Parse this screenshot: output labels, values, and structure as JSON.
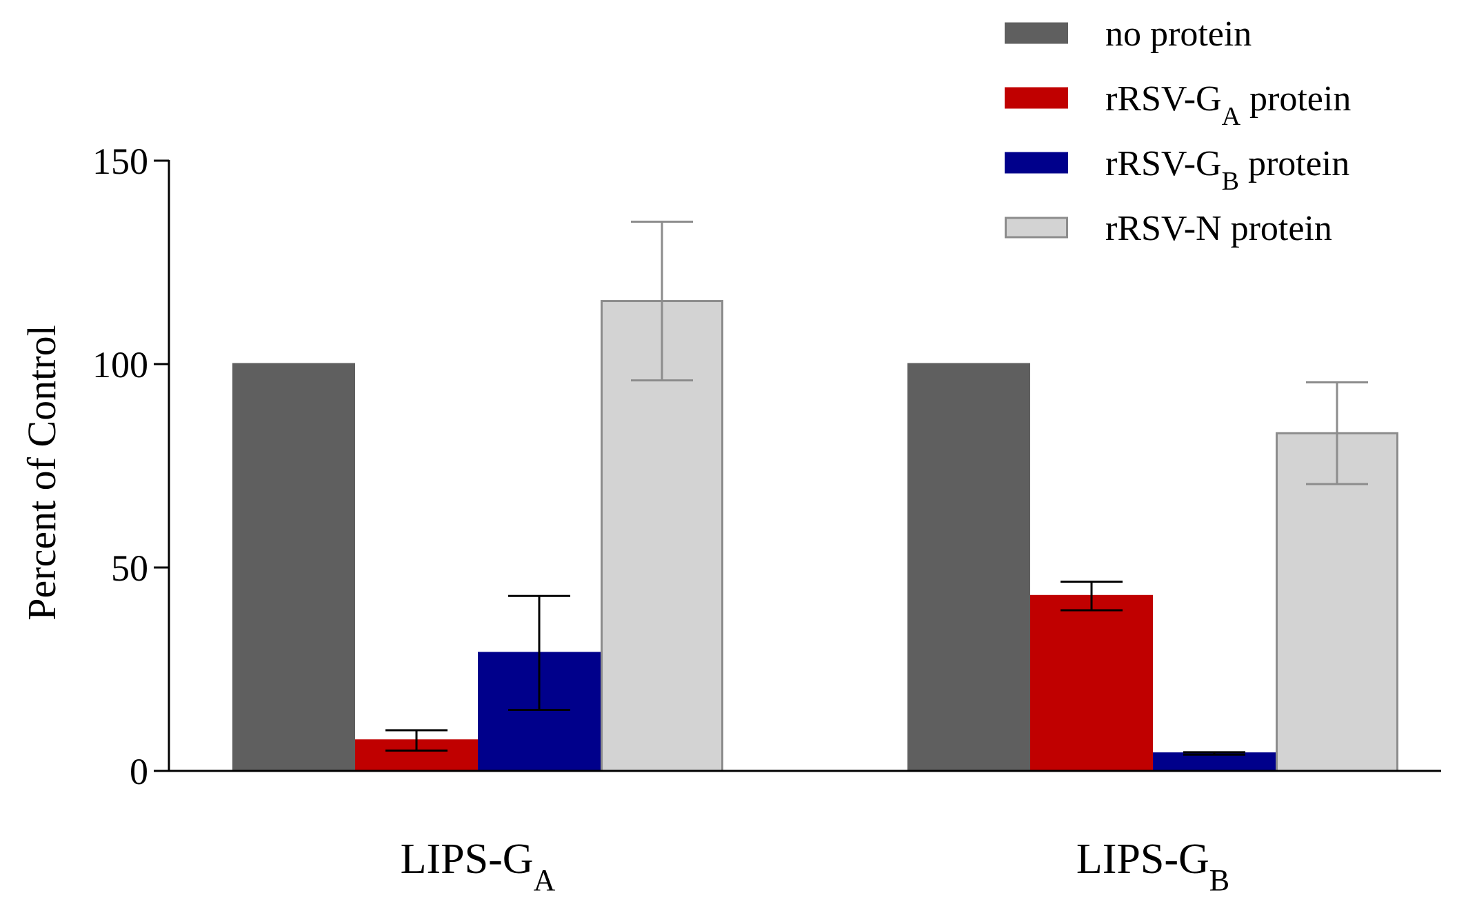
{
  "chart_data": {
    "type": "bar",
    "title": "",
    "xlabel": "",
    "ylabel": "Percent of Control",
    "ylim": [
      0,
      150
    ],
    "yticks": [
      0,
      50,
      100,
      150
    ],
    "grid": false,
    "legend_position": "top-right",
    "categories": [
      {
        "main": "LIPS-G",
        "sub": "A"
      },
      {
        "main": "LIPS-G",
        "sub": "B"
      }
    ],
    "series": [
      {
        "name": {
          "main": "no protein",
          "sub": "",
          "suffix": ""
        },
        "fill": "#5f5f5f",
        "stroke": "#5f5f5f",
        "error_color": "#5f5f5f",
        "values": [
          100,
          100
        ],
        "errors": [
          0,
          0
        ]
      },
      {
        "name": {
          "main": "rRSV-G",
          "sub": "A",
          "suffix": " protein"
        },
        "fill": "#c00000",
        "stroke": "#c00000",
        "error_color": "#000000",
        "values": [
          7.5,
          43
        ],
        "errors": [
          2.5,
          3.5
        ]
      },
      {
        "name": {
          "main": "rRSV-G",
          "sub": "B",
          "suffix": " protein"
        },
        "fill": "#00008b",
        "stroke": "#00008b",
        "error_color": "#000000",
        "values": [
          29,
          4.3
        ],
        "errors": [
          14,
          0.3
        ]
      },
      {
        "name": {
          "main": "rRSV-N",
          "sub": "",
          "suffix": " protein"
        },
        "fill": "#d3d3d3",
        "stroke": "#8c8c8c",
        "error_color": "#8c8c8c",
        "values": [
          115.5,
          83
        ],
        "errors": [
          19.5,
          12.5
        ]
      }
    ]
  }
}
